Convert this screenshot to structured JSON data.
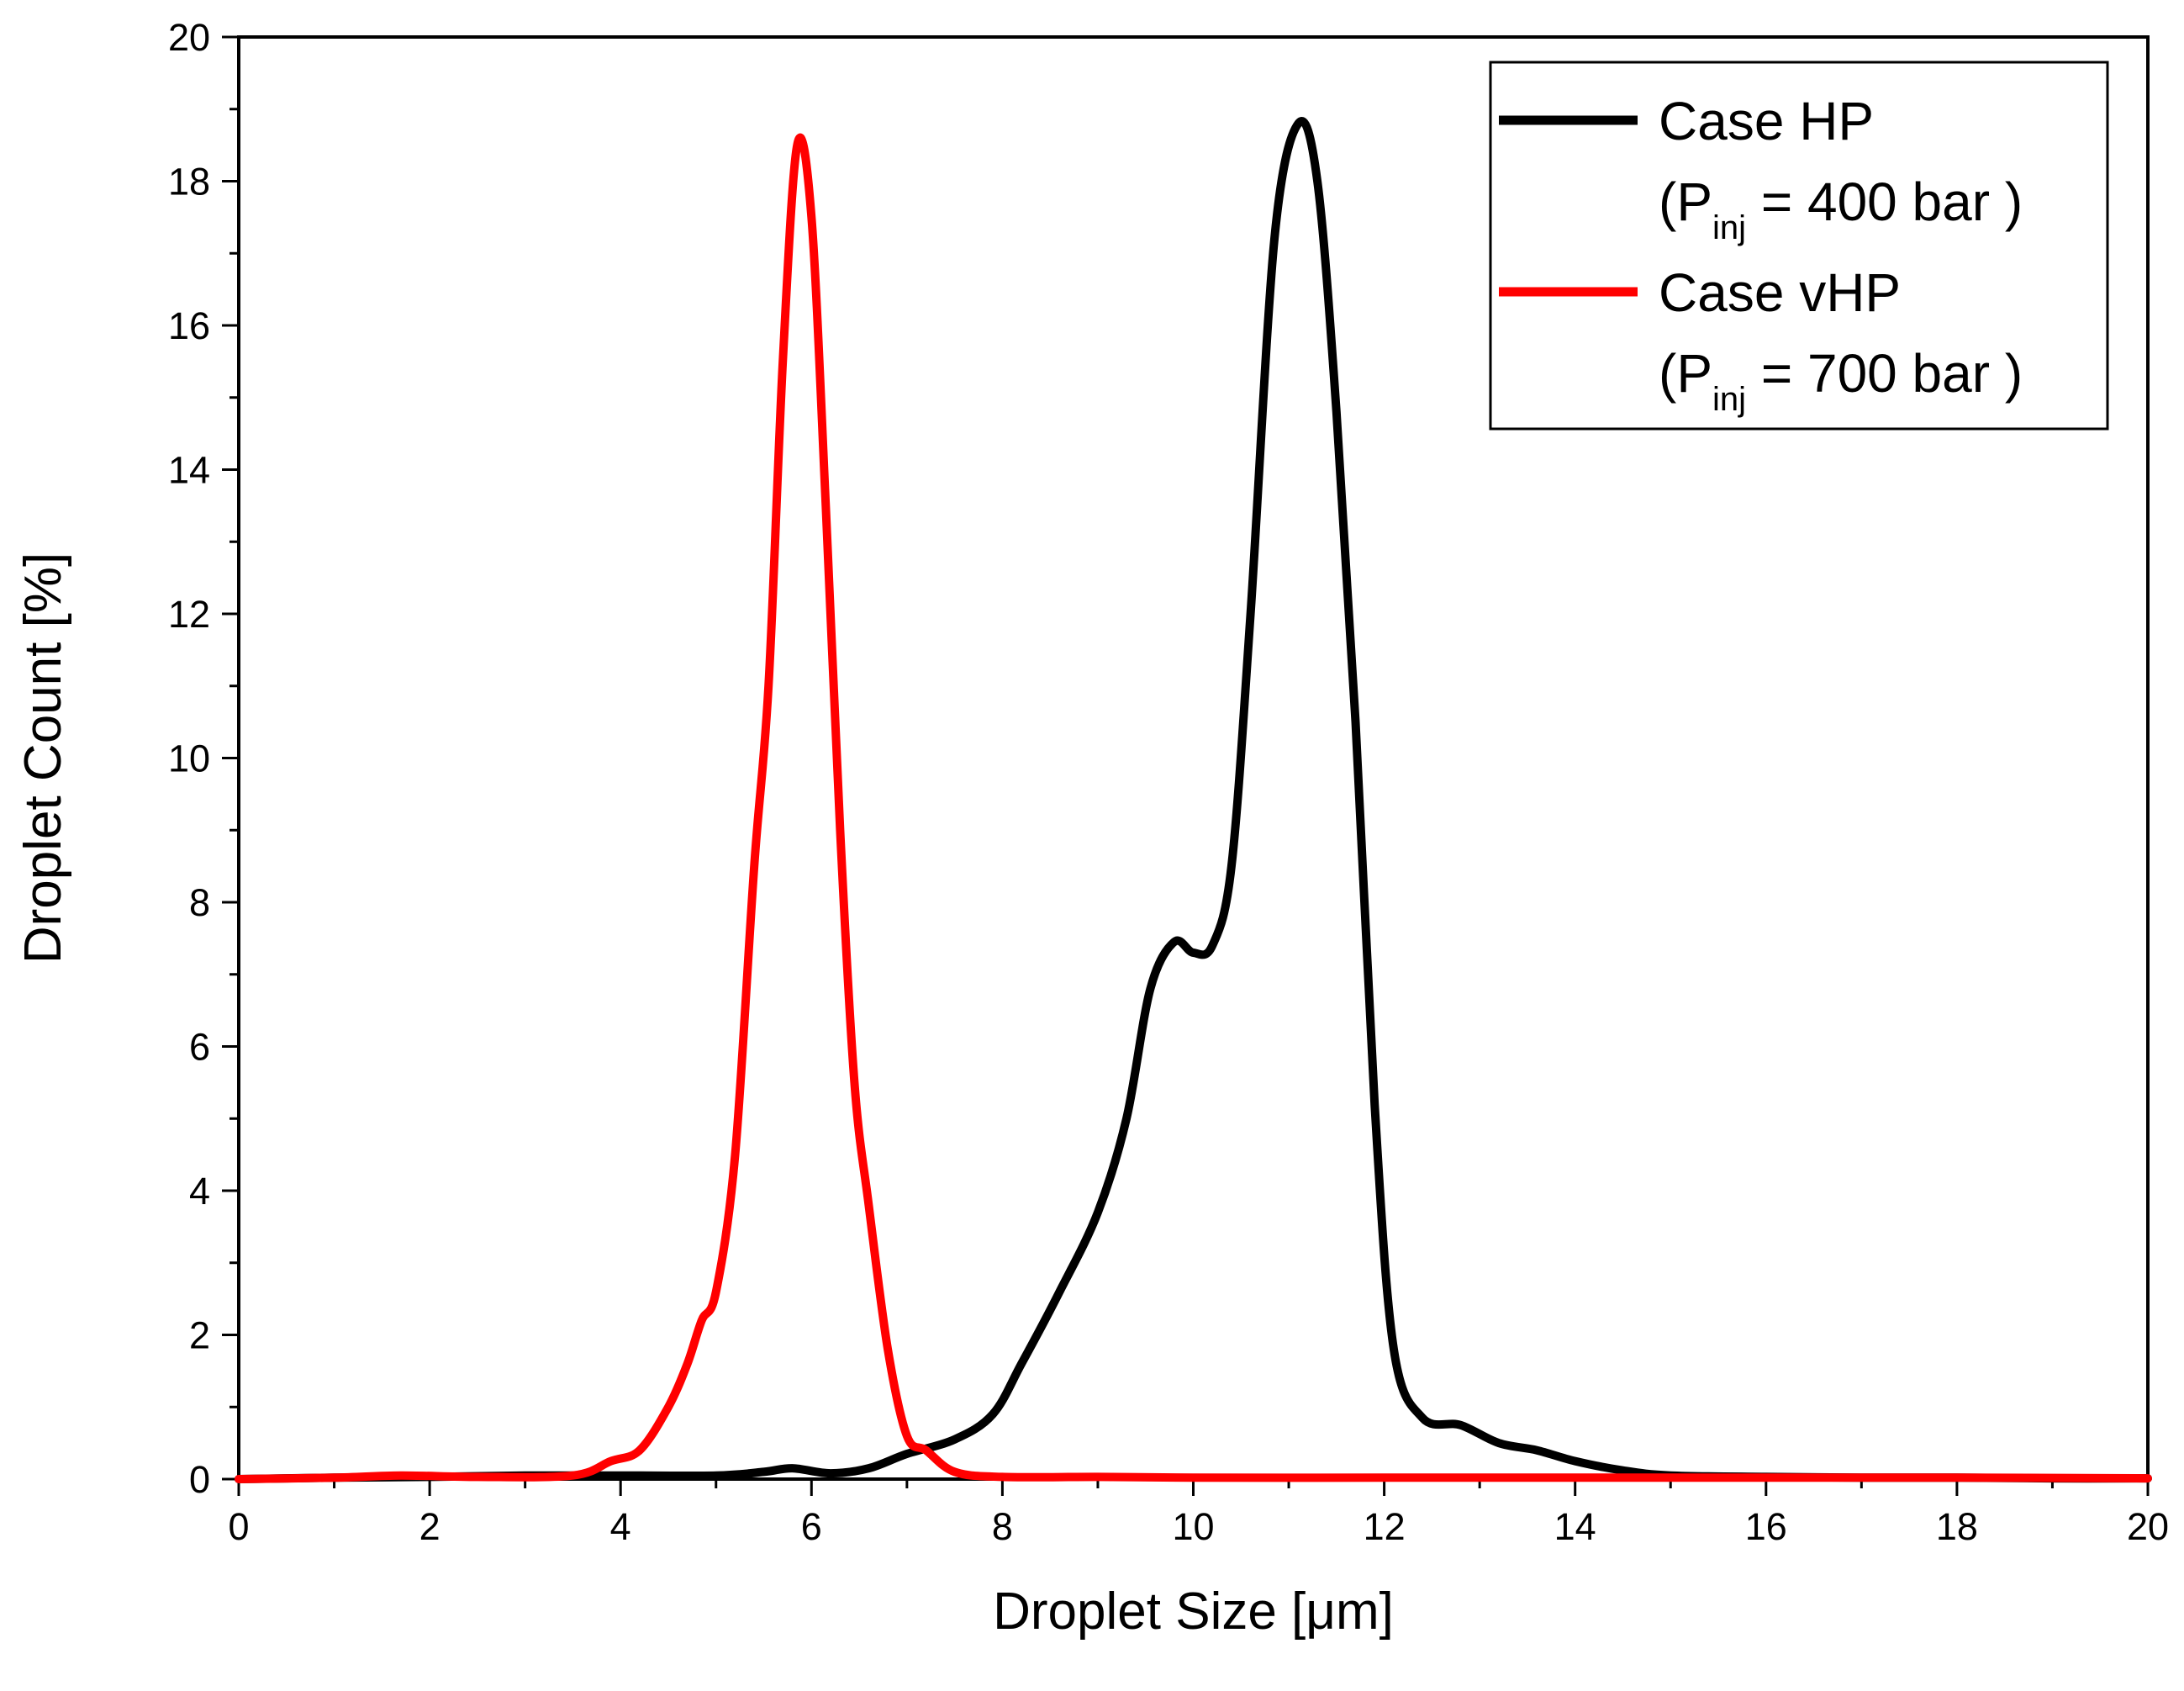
{
  "chart_data": {
    "type": "line",
    "title": "",
    "xlabel": "Droplet Size [μm]",
    "ylabel": "Droplet Count [%]",
    "xlim": [
      0,
      20
    ],
    "ylim": [
      0,
      20
    ],
    "x_ticks": [
      "0",
      "2",
      "4",
      "6",
      "8",
      "10",
      "12",
      "14",
      "16",
      "18",
      "20"
    ],
    "y_ticks": [
      "0",
      "2",
      "4",
      "6",
      "8",
      "10",
      "12",
      "14",
      "16",
      "18",
      "20"
    ],
    "grid": false,
    "legend_position": "top-right",
    "series": [
      {
        "name": "Case HP",
        "legend_line2": {
          "open": "(P",
          "sub": "inj",
          "rest": " = 400 bar )"
        },
        "color": "#000000",
        "points": [
          [
            0,
            0
          ],
          [
            1,
            0.02
          ],
          [
            2,
            0.03
          ],
          [
            3,
            0.05
          ],
          [
            4,
            0.05
          ],
          [
            5,
            0.05
          ],
          [
            5.5,
            0.1
          ],
          [
            5.8,
            0.15
          ],
          [
            6.2,
            0.08
          ],
          [
            6.6,
            0.15
          ],
          [
            7,
            0.35
          ],
          [
            7.5,
            0.55
          ],
          [
            7.9,
            0.9
          ],
          [
            8.2,
            1.6
          ],
          [
            8.6,
            2.6
          ],
          [
            9.0,
            3.7
          ],
          [
            9.3,
            5.0
          ],
          [
            9.55,
            6.8
          ],
          [
            9.8,
            7.45
          ],
          [
            10.0,
            7.3
          ],
          [
            10.2,
            7.4
          ],
          [
            10.4,
            8.5
          ],
          [
            10.6,
            12.0
          ],
          [
            10.85,
            17.2
          ],
          [
            11.1,
            18.8
          ],
          [
            11.3,
            18.0
          ],
          [
            11.5,
            14.8
          ],
          [
            11.7,
            10.5
          ],
          [
            11.9,
            5.2
          ],
          [
            12.1,
            1.8
          ],
          [
            12.4,
            0.85
          ],
          [
            12.8,
            0.75
          ],
          [
            13.2,
            0.5
          ],
          [
            13.6,
            0.4
          ],
          [
            14,
            0.25
          ],
          [
            14.5,
            0.12
          ],
          [
            15,
            0.05
          ],
          [
            16,
            0.03
          ],
          [
            17,
            0.02
          ],
          [
            18,
            0.02
          ],
          [
            19,
            0.01
          ],
          [
            20,
            0.01
          ]
        ]
      },
      {
        "name": "Case vHP",
        "legend_line2": {
          "open": "(P",
          "sub": "inj",
          "rest": " = 700 bar )"
        },
        "color": "#ff0000",
        "points": [
          [
            0,
            0
          ],
          [
            1,
            0.02
          ],
          [
            1.7,
            0.05
          ],
          [
            2.5,
            0.03
          ],
          [
            3.5,
            0.05
          ],
          [
            3.9,
            0.25
          ],
          [
            4.2,
            0.4
          ],
          [
            4.5,
            1.0
          ],
          [
            4.7,
            1.6
          ],
          [
            4.85,
            2.2
          ],
          [
            5.0,
            2.6
          ],
          [
            5.2,
            4.5
          ],
          [
            5.4,
            8.5
          ],
          [
            5.55,
            11.0
          ],
          [
            5.7,
            15.5
          ],
          [
            5.85,
            18.5
          ],
          [
            6.0,
            17.5
          ],
          [
            6.15,
            13.5
          ],
          [
            6.3,
            9.0
          ],
          [
            6.45,
            5.5
          ],
          [
            6.6,
            3.8
          ],
          [
            6.8,
            1.8
          ],
          [
            7.0,
            0.6
          ],
          [
            7.2,
            0.4
          ],
          [
            7.5,
            0.1
          ],
          [
            8,
            0.03
          ],
          [
            9,
            0.03
          ],
          [
            10,
            0.02
          ],
          [
            12,
            0.02
          ],
          [
            14,
            0.02
          ],
          [
            16,
            0.02
          ],
          [
            18,
            0.02
          ],
          [
            20,
            0.01
          ]
        ]
      }
    ]
  }
}
